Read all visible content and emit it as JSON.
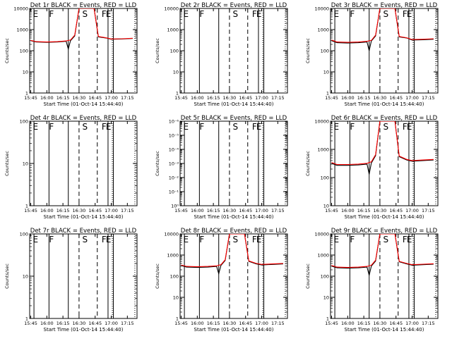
{
  "chart_data": [
    {
      "type": "line",
      "title": "Det 1r BLACK = Events, RED = LLD",
      "ylabel": "Counts/sec",
      "xlabel": "Start Time (01-Oct-14 15:44:40)",
      "xticks": [
        "15:45",
        "16:00",
        "16:15",
        "16:30",
        "16:45",
        "17:00",
        "17:15"
      ],
      "yticks": [
        "1",
        "10",
        "100",
        "1000",
        "10000"
      ],
      "ylim": [
        1,
        10000
      ],
      "yscale": "log",
      "markers": [
        {
          "label": "E",
          "time": "15:47"
        },
        {
          "label": "F",
          "time": "16:02"
        },
        {
          "label": "S",
          "time": "16:33"
        },
        {
          "label": "F",
          "time": "16:51"
        },
        {
          "label": "E",
          "time": "16:55"
        }
      ],
      "solid_lines": [
        "15:48",
        "16:02",
        "16:20",
        "16:57",
        "17:02"
      ],
      "dashed_lines": [
        "16:30",
        "16:47"
      ],
      "dotted_lines": [
        "17:01",
        "17:22"
      ],
      "series": [
        {
          "color": "#000000",
          "time": [
            "15:45",
            "15:50",
            "16:00",
            "16:10",
            "16:18",
            "16:20",
            "16:22",
            "16:26",
            "16:30",
            "16:44",
            "16:48",
            "16:55",
            "17:00",
            "17:10",
            "17:20"
          ],
          "values": [
            300,
            260,
            250,
            260,
            280,
            120,
            300,
            500,
            10000,
            10000,
            450,
            400,
            350,
            360,
            380
          ]
        },
        {
          "color": "#ff0000",
          "time": [
            "15:45",
            "15:50",
            "16:00",
            "16:10",
            "16:18",
            "16:22",
            "16:26",
            "16:30",
            "16:44",
            "16:48",
            "16:55",
            "17:00",
            "17:10",
            "17:20"
          ],
          "values": [
            310,
            270,
            260,
            270,
            290,
            320,
            550,
            10000,
            10000,
            470,
            410,
            360,
            370,
            390
          ]
        }
      ]
    },
    {
      "type": "line",
      "title": "Det 2r BLACK = Events, RED = LLD",
      "ylabel": "Counts/sec",
      "xlabel": "Start Time (01-Oct-14 15:44:40)",
      "xticks": [
        "15:45",
        "16:00",
        "16:15",
        "16:30",
        "16:45",
        "17:00",
        "17:15"
      ],
      "yticks": [
        "1",
        "10",
        "100",
        "1000",
        "10000"
      ],
      "ylim": [
        1,
        10000
      ],
      "yscale": "log",
      "markers": [
        {
          "label": "E",
          "time": "15:47"
        },
        {
          "label": "F",
          "time": "16:02"
        },
        {
          "label": "S",
          "time": "16:33"
        },
        {
          "label": "F",
          "time": "16:51"
        },
        {
          "label": "E",
          "time": "16:55"
        }
      ],
      "solid_lines": [
        "15:48",
        "16:02",
        "16:20",
        "16:57",
        "17:02"
      ],
      "dashed_lines": [
        "16:30",
        "16:47"
      ],
      "dotted_lines": [
        "17:01",
        "17:22"
      ],
      "series": []
    },
    {
      "type": "line",
      "title": "Det 3r BLACK = Events, RED = LLD",
      "ylabel": "Counts/sec",
      "xlabel": "Start Time (01-Oct-14 15:44:40)",
      "xticks": [
        "15:45",
        "16:00",
        "16:15",
        "16:30",
        "16:45",
        "17:00",
        "17:15"
      ],
      "yticks": [
        "1",
        "10",
        "100",
        "1000",
        "10000"
      ],
      "ylim": [
        1,
        10000
      ],
      "yscale": "log",
      "markers": [
        {
          "label": "E",
          "time": "15:47"
        },
        {
          "label": "F",
          "time": "16:02"
        },
        {
          "label": "S",
          "time": "16:33"
        },
        {
          "label": "F",
          "time": "16:51"
        },
        {
          "label": "E",
          "time": "16:55"
        }
      ],
      "solid_lines": [
        "15:48",
        "16:02",
        "16:20",
        "16:57",
        "17:02"
      ],
      "dashed_lines": [
        "16:30",
        "16:47"
      ],
      "dotted_lines": [
        "17:01",
        "17:22"
      ],
      "series": [
        {
          "color": "#000000",
          "time": [
            "15:45",
            "15:50",
            "16:00",
            "16:10",
            "16:18",
            "16:20",
            "16:22",
            "16:26",
            "16:30",
            "16:44",
            "16:48",
            "16:55",
            "17:00",
            "17:10",
            "17:20"
          ],
          "values": [
            300,
            240,
            230,
            240,
            260,
            100,
            290,
            500,
            10000,
            10000,
            450,
            400,
            320,
            330,
            350
          ]
        },
        {
          "color": "#ff0000",
          "time": [
            "15:45",
            "15:50",
            "16:00",
            "16:10",
            "16:18",
            "16:22",
            "16:26",
            "16:30",
            "16:44",
            "16:48",
            "16:55",
            "17:00",
            "17:10",
            "17:20"
          ],
          "values": [
            320,
            260,
            250,
            260,
            280,
            310,
            550,
            10000,
            10000,
            470,
            410,
            340,
            350,
            370
          ]
        }
      ]
    },
    {
      "type": "line",
      "title": "Det 4r BLACK = Events, RED = LLD",
      "ylabel": "Counts/sec",
      "xlabel": "Start Time (01-Oct-14 15:44:40)",
      "xticks": [
        "15:45",
        "16:00",
        "16:15",
        "16:30",
        "16:45",
        "17:00",
        "17:15"
      ],
      "yticks": [
        "1",
        "10",
        "100"
      ],
      "ylim": [
        1,
        100
      ],
      "yscale": "log",
      "markers": [
        {
          "label": "E",
          "time": "15:47"
        },
        {
          "label": "F",
          "time": "16:02"
        },
        {
          "label": "S",
          "time": "16:33"
        },
        {
          "label": "F",
          "time": "16:51"
        },
        {
          "label": "E",
          "time": "16:55"
        }
      ],
      "solid_lines": [
        "15:48",
        "16:02",
        "16:20",
        "16:57",
        "17:02"
      ],
      "dashed_lines": [
        "16:30",
        "16:47"
      ],
      "dotted_lines": [
        "17:01",
        "17:22"
      ],
      "series": []
    },
    {
      "type": "line",
      "title": "Det 5r BLACK = Events, RED = LLD",
      "ylabel": "Counts/sec",
      "xlabel": "Start Time (01-Oct-14 15:44:40)",
      "xticks": [
        "15:45",
        "16:00",
        "16:15",
        "16:30",
        "16:45",
        "17:00",
        "17:15"
      ],
      "yticks": [
        "10⁰",
        "10⁻¹",
        "10⁻²",
        "10⁻³",
        "10⁻⁴",
        "10⁻⁵",
        "10⁻⁶"
      ],
      "ylim": [
        1,
        1e-06
      ],
      "yscale": "log",
      "markers": [
        {
          "label": "E",
          "time": "15:47"
        },
        {
          "label": "F",
          "time": "16:02"
        },
        {
          "label": "S",
          "time": "16:33"
        },
        {
          "label": "F",
          "time": "16:51"
        },
        {
          "label": "E",
          "time": "16:55"
        }
      ],
      "solid_lines": [
        "15:48",
        "16:02",
        "16:20",
        "16:57",
        "17:02"
      ],
      "dashed_lines": [
        "16:30",
        "16:47"
      ],
      "dotted_lines": [
        "17:01",
        "17:22"
      ],
      "series": []
    },
    {
      "type": "line",
      "title": "Det 6r BLACK = Events, RED = LLD",
      "ylabel": "Counts/sec",
      "xlabel": "Start Time (01-Oct-14 15:44:40)",
      "xticks": [
        "15:45",
        "16:00",
        "16:15",
        "16:30",
        "16:45",
        "17:00",
        "17:15"
      ],
      "yticks": [
        "10",
        "100",
        "1000",
        "10000"
      ],
      "ylim": [
        10,
        10000
      ],
      "yscale": "log",
      "markers": [
        {
          "label": "E",
          "time": "15:47"
        },
        {
          "label": "F",
          "time": "16:02"
        },
        {
          "label": "S",
          "time": "16:33"
        },
        {
          "label": "F",
          "time": "16:51"
        },
        {
          "label": "E",
          "time": "16:55"
        }
      ],
      "solid_lines": [
        "15:48",
        "16:02",
        "16:20",
        "16:57",
        "17:02"
      ],
      "dashed_lines": [
        "16:30",
        "16:47"
      ],
      "dotted_lines": [
        "17:01",
        "17:22"
      ],
      "series": [
        {
          "color": "#000000",
          "time": [
            "15:45",
            "15:50",
            "16:00",
            "16:10",
            "16:18",
            "16:20",
            "16:22",
            "16:26",
            "16:30",
            "16:44",
            "16:48",
            "16:55",
            "17:00",
            "17:10",
            "17:20"
          ],
          "values": [
            320,
            270,
            270,
            280,
            300,
            130,
            330,
            600,
            10000,
            10000,
            550,
            420,
            380,
            400,
            420
          ]
        },
        {
          "color": "#ff0000",
          "time": [
            "15:45",
            "15:50",
            "16:00",
            "16:10",
            "16:18",
            "16:22",
            "16:26",
            "16:30",
            "16:44",
            "16:48",
            "16:55",
            "17:00",
            "17:10",
            "17:20"
          ],
          "values": [
            340,
            290,
            290,
            300,
            320,
            360,
            650,
            10000,
            10000,
            580,
            440,
            400,
            420,
            440
          ]
        }
      ]
    },
    {
      "type": "line",
      "title": "Det 7r BLACK = Events, RED = LLD",
      "ylabel": "Counts/sec",
      "xlabel": "Start Time (01-Oct-14 15:44:40)",
      "xticks": [
        "15:45",
        "16:00",
        "16:15",
        "16:30",
        "16:45",
        "17:00",
        "17:15"
      ],
      "yticks": [
        "1",
        "10",
        "100"
      ],
      "ylim": [
        1,
        100
      ],
      "yscale": "log",
      "markers": [
        {
          "label": "E",
          "time": "15:47"
        },
        {
          "label": "F",
          "time": "16:02"
        },
        {
          "label": "S",
          "time": "16:33"
        },
        {
          "label": "F",
          "time": "16:51"
        },
        {
          "label": "E",
          "time": "16:55"
        }
      ],
      "solid_lines": [
        "15:48",
        "16:02",
        "16:20",
        "16:57",
        "17:02"
      ],
      "dashed_lines": [
        "16:30",
        "16:47"
      ],
      "dotted_lines": [
        "17:01",
        "17:22"
      ],
      "series": []
    },
    {
      "type": "line",
      "title": "Det 8r BLACK = Events, RED = LLD",
      "ylabel": "Counts/sec",
      "xlabel": "Start Time (01-Oct-14 15:44:40)",
      "xticks": [
        "15:45",
        "16:00",
        "16:15",
        "16:30",
        "16:45",
        "17:00",
        "17:15"
      ],
      "yticks": [
        "1",
        "10",
        "100",
        "1000",
        "10000"
      ],
      "ylim": [
        1,
        10000
      ],
      "yscale": "log",
      "markers": [
        {
          "label": "E",
          "time": "15:47"
        },
        {
          "label": "F",
          "time": "16:02"
        },
        {
          "label": "S",
          "time": "16:33"
        },
        {
          "label": "F",
          "time": "16:51"
        },
        {
          "label": "E",
          "time": "16:55"
        }
      ],
      "solid_lines": [
        "15:48",
        "16:02",
        "16:20",
        "16:57",
        "17:02"
      ],
      "dashed_lines": [
        "16:30",
        "16:47"
      ],
      "dotted_lines": [
        "17:01",
        "17:22"
      ],
      "series": [
        {
          "color": "#000000",
          "time": [
            "15:45",
            "15:50",
            "16:00",
            "16:10",
            "16:18",
            "16:20",
            "16:22",
            "16:26",
            "16:30",
            "16:44",
            "16:48",
            "16:55",
            "17:00",
            "17:10",
            "17:20"
          ],
          "values": [
            320,
            270,
            260,
            270,
            290,
            130,
            320,
            550,
            10000,
            10000,
            500,
            380,
            340,
            360,
            380
          ]
        },
        {
          "color": "#ff0000",
          "time": [
            "15:45",
            "15:50",
            "16:00",
            "16:10",
            "16:18",
            "16:22",
            "16:26",
            "16:30",
            "16:44",
            "16:48",
            "16:55",
            "17:00",
            "17:10",
            "17:20"
          ],
          "values": [
            340,
            290,
            280,
            290,
            310,
            350,
            600,
            10000,
            10000,
            530,
            400,
            360,
            380,
            400
          ]
        }
      ]
    },
    {
      "type": "line",
      "title": "Det 9r BLACK = Events, RED = LLD",
      "ylabel": "Counts/sec",
      "xlabel": "Start Time (01-Oct-14 15:44:40)",
      "xticks": [
        "15:45",
        "16:00",
        "16:15",
        "16:30",
        "16:45",
        "17:00",
        "17:15"
      ],
      "yticks": [
        "1",
        "10",
        "100",
        "1000",
        "10000"
      ],
      "ylim": [
        1,
        10000
      ],
      "yscale": "log",
      "markers": [
        {
          "label": "E",
          "time": "15:47"
        },
        {
          "label": "F",
          "time": "16:02"
        },
        {
          "label": "S",
          "time": "16:33"
        },
        {
          "label": "F",
          "time": "16:51"
        },
        {
          "label": "E",
          "time": "16:55"
        }
      ],
      "solid_lines": [
        "15:48",
        "16:02",
        "16:20",
        "16:57",
        "17:02"
      ],
      "dashed_lines": [
        "16:30",
        "16:47"
      ],
      "dotted_lines": [
        "17:01",
        "17:22"
      ],
      "series": [
        {
          "color": "#000000",
          "time": [
            "15:45",
            "15:50",
            "16:00",
            "16:10",
            "16:18",
            "16:20",
            "16:22",
            "16:26",
            "16:30",
            "16:44",
            "16:48",
            "16:55",
            "17:00",
            "17:10",
            "17:20"
          ],
          "values": [
            300,
            250,
            240,
            250,
            270,
            110,
            300,
            520,
            10000,
            10000,
            480,
            380,
            330,
            350,
            370
          ]
        },
        {
          "color": "#ff0000",
          "time": [
            "15:45",
            "15:50",
            "16:00",
            "16:10",
            "16:18",
            "16:22",
            "16:26",
            "16:30",
            "16:44",
            "16:48",
            "16:55",
            "17:00",
            "17:10",
            "17:20"
          ],
          "values": [
            320,
            270,
            260,
            270,
            290,
            330,
            570,
            10000,
            10000,
            500,
            400,
            350,
            370,
            390
          ]
        }
      ]
    }
  ]
}
